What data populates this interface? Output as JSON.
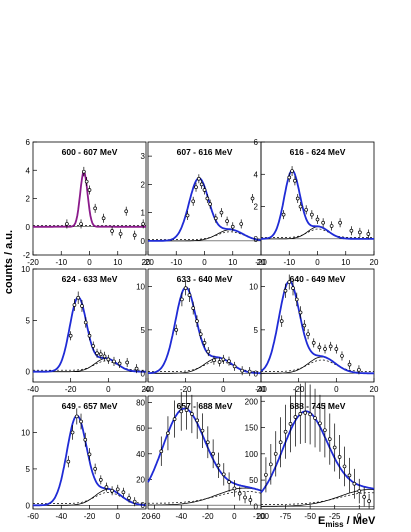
{
  "ylabel": "counts / a.u.",
  "xlabel": "E",
  "xlabel_sub": "miss",
  "xlabel_unit": " / MeV",
  "colors": {
    "fit_total": "#1f2bd6",
    "fit_total_panel1": "#8b1a8b",
    "component": "#000000",
    "data": "#000000"
  },
  "chart_data": [
    {
      "type": "line",
      "title": "600 - 607 MeV",
      "xlim": [
        -20,
        20
      ],
      "ylim": [
        -2,
        6
      ],
      "xticks": [
        -20,
        -10,
        0,
        10,
        20
      ],
      "yticks": [
        -2,
        0,
        2,
        4,
        6
      ],
      "peak_x": -2,
      "peak_y": 3.9,
      "width": 1.3,
      "scatter_x": [
        -8,
        -3,
        -2,
        -1,
        0,
        2,
        5,
        8,
        11,
        13,
        16,
        19
      ],
      "scatter_y": [
        0.2,
        0.2,
        3.9,
        3.2,
        2.6,
        1.3,
        0.6,
        -0.3,
        -0.5,
        1.1,
        -0.6,
        0.2
      ]
    },
    {
      "type": "line",
      "title": "607 - 616 MeV",
      "xlim": [
        -20,
        20
      ],
      "ylim": [
        -0.5,
        3.5
      ],
      "xticks": [
        -20,
        -10,
        0,
        10,
        20
      ],
      "yticks": [
        0,
        1,
        2,
        3
      ],
      "peak_x": -2,
      "peak_y": 2.2,
      "width": 3.5,
      "scatter_x": [
        -6,
        -4,
        -3,
        -2,
        -1,
        0,
        1,
        2,
        4,
        6,
        8,
        10,
        13,
        17
      ],
      "scatter_y": [
        0.9,
        1.4,
        1.9,
        2.2,
        2.0,
        1.8,
        1.5,
        1.3,
        0.8,
        1.0,
        0.7,
        0.5,
        0.6,
        1.5
      ]
    },
    {
      "type": "line",
      "title": "616 - 624 MeV",
      "xlim": [
        -20,
        20
      ],
      "ylim": [
        -1,
        6
      ],
      "xticks": [
        -20,
        -10,
        0,
        10,
        20
      ],
      "yticks": [
        0,
        2,
        4,
        6
      ],
      "peak_x": -9,
      "peak_y": 4.2,
      "width": 2.8,
      "scatter_x": [
        -12,
        -10,
        -9,
        -8,
        -7,
        -6,
        -4,
        -2,
        0,
        2,
        5,
        8,
        12,
        15,
        18
      ],
      "scatter_y": [
        1.5,
        3.8,
        4.2,
        3.6,
        2.5,
        2.0,
        1.8,
        1.5,
        1.2,
        1.0,
        0.8,
        1.0,
        0.5,
        0.4,
        0.3
      ]
    },
    {
      "type": "line",
      "title": "624 - 633 MeV",
      "xlim": [
        -40,
        20
      ],
      "ylim": [
        -1,
        10
      ],
      "xticks": [
        -40,
        -20,
        0,
        20
      ],
      "yticks": [
        0,
        5,
        10
      ],
      "peak_x": -16,
      "peak_y": 7.2,
      "width": 4.5,
      "scatter_x": [
        -20,
        -18,
        -16,
        -14,
        -12,
        -10,
        -8,
        -6,
        -4,
        -2,
        0,
        3,
        6,
        10,
        15
      ],
      "scatter_y": [
        3.5,
        6.5,
        7.2,
        6.4,
        4.8,
        3.5,
        2.5,
        1.8,
        1.7,
        1.5,
        1.2,
        1.0,
        0.8,
        0.9,
        0.3
      ]
    },
    {
      "type": "line",
      "title": "633 - 640 MeV",
      "xlim": [
        -40,
        20
      ],
      "ylim": [
        -1,
        12
      ],
      "xticks": [
        -40,
        -20,
        0,
        20
      ],
      "yticks": [
        0,
        5,
        10
      ],
      "peak_x": -20,
      "peak_y": 9.8,
      "width": 5.5,
      "scatter_x": [
        -25,
        -22,
        -20,
        -18,
        -16,
        -14,
        -12,
        -10,
        -8,
        -5,
        -2,
        0,
        3,
        6,
        10,
        14
      ],
      "scatter_y": [
        5,
        8.5,
        9.8,
        9,
        7.5,
        6,
        4.5,
        3.5,
        2.5,
        1.5,
        1.3,
        1.6,
        1.4,
        0.8,
        0.3,
        0.2
      ]
    },
    {
      "type": "line",
      "title": "640 - 649 MeV",
      "xlim": [
        -40,
        20
      ],
      "ylim": [
        -1,
        12
      ],
      "xticks": [
        -40,
        -20,
        0,
        20
      ],
      "yticks": [
        0,
        5,
        10
      ],
      "peak_x": -25,
      "peak_y": 10.5,
      "width": 5.5,
      "scatter_x": [
        -29,
        -27,
        -25,
        -23,
        -21,
        -19,
        -17,
        -15,
        -12,
        -9,
        -6,
        -3,
        0,
        3,
        7,
        12
      ],
      "scatter_y": [
        6,
        9.5,
        10.5,
        9.8,
        8.5,
        7,
        5.5,
        4.5,
        3.5,
        3.0,
        2.8,
        3.1,
        2.8,
        2.0,
        1.0,
        0.4
      ]
    },
    {
      "type": "line",
      "title": "649 - 657 MeV",
      "xlim": [
        -60,
        20
      ],
      "ylim": [
        -0.5,
        15
      ],
      "xticks": [
        -60,
        -40,
        -20,
        0,
        20
      ],
      "yticks": [
        0,
        5,
        10
      ],
      "peak_x": -29,
      "peak_y": 12.2,
      "width": 7,
      "scatter_x": [
        -35,
        -32,
        -29,
        -26,
        -23,
        -20,
        -16,
        -12,
        -8,
        -4,
        0,
        4,
        8,
        12
      ],
      "scatter_y": [
        6,
        10,
        12.2,
        11.5,
        9,
        7,
        5,
        3.5,
        2.5,
        2.0,
        2.2,
        1.8,
        1.0,
        0.5
      ]
    },
    {
      "type": "line",
      "title": "657 - 688 MeV",
      "xlim": [
        -65,
        20
      ],
      "ylim": [
        -3,
        85
      ],
      "xticks": [
        -60,
        -40,
        -20,
        0,
        20
      ],
      "yticks": [
        0,
        20,
        40,
        60,
        80
      ],
      "peak_x": -38,
      "peak_y": 74,
      "width": 16,
      "scatter_x": [
        -55,
        -50,
        -45,
        -40,
        -36,
        -32,
        -28,
        -24,
        -20,
        -16,
        -12,
        -8,
        -4,
        0,
        4,
        8,
        12
      ],
      "scatter_y": [
        42,
        56,
        67,
        73,
        74,
        71,
        66,
        58,
        49,
        40,
        31,
        24,
        18,
        13,
        9,
        6,
        4
      ]
    },
    {
      "type": "line",
      "title": "688 - 745 MeV",
      "xlim": [
        -100,
        15
      ],
      "ylim": [
        -5,
        210
      ],
      "xticks": [
        -100,
        -75,
        -50,
        -25,
        0
      ],
      "yticks": [
        0,
        50,
        100,
        150,
        200
      ],
      "peak_x": -55,
      "peak_y": 178,
      "width": 23,
      "scatter_x": [
        -95,
        -90,
        -85,
        -80,
        -75,
        -70,
        -65,
        -60,
        -55,
        -50,
        -45,
        -40,
        -35,
        -30,
        -25,
        -20,
        -15,
        -10,
        -5,
        0,
        5,
        10
      ],
      "scatter_y": [
        60,
        80,
        100,
        122,
        142,
        157,
        170,
        176,
        178,
        175,
        168,
        158,
        145,
        128,
        112,
        94,
        76,
        59,
        43,
        29,
        18,
        10
      ]
    }
  ]
}
